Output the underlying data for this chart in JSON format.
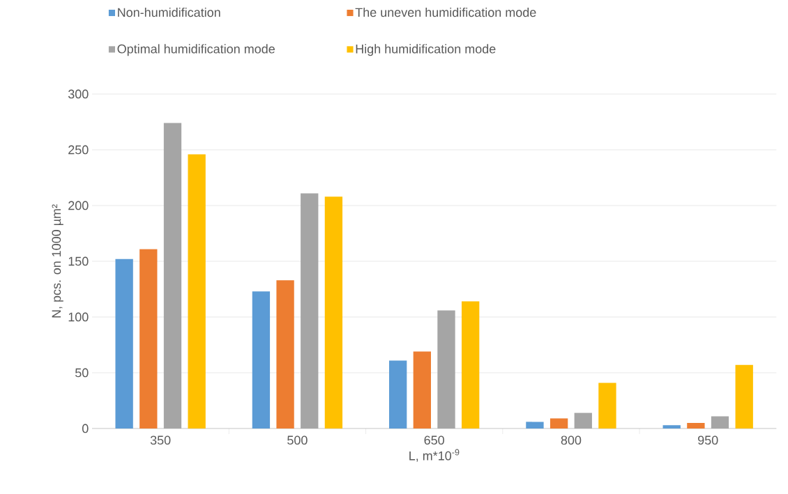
{
  "chart_data": {
    "type": "bar",
    "xlabel": "L, m*10$^{-9}$",
    "ylabel": "N, pcs. on 1000 µm²",
    "categories": [
      "350",
      "500",
      "650",
      "800",
      "950"
    ],
    "series": [
      {
        "name": "Non-humidification",
        "color": "#5b9bd5",
        "values": [
          152,
          123,
          61,
          6,
          3
        ]
      },
      {
        "name": "The uneven humidification mode",
        "color": "#ed7d31",
        "values": [
          161,
          133,
          69,
          9,
          5
        ]
      },
      {
        "name": "Optimal humidification mode",
        "color": "#a5a5a5",
        "values": [
          274,
          211,
          106,
          14,
          11
        ]
      },
      {
        "name": "High humidification mode",
        "color": "#ffc000",
        "values": [
          246,
          208,
          114,
          41,
          57
        ]
      }
    ],
    "ylim": [
      0,
      300
    ],
    "yticks": [
      0,
      50,
      100,
      150,
      200,
      250,
      300
    ],
    "grid": "y",
    "legend": "top"
  }
}
